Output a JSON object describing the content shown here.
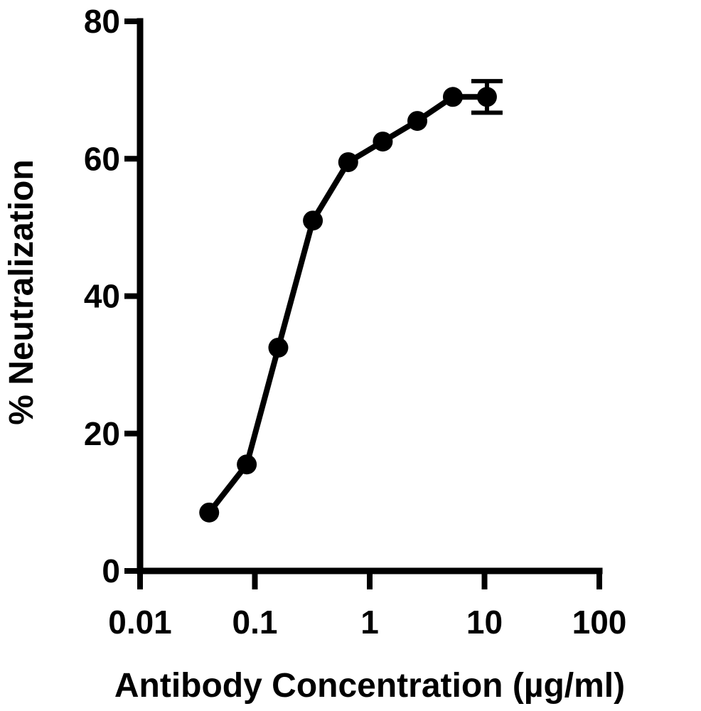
{
  "chart_data": {
    "type": "line",
    "xlabel": "Antibody Concentration (µg/ml)",
    "ylabel": "% Neutralization",
    "x_scale": "log",
    "xlim": [
      0.01,
      100
    ],
    "ylim": [
      0,
      80
    ],
    "x_ticks": [
      {
        "value": 0.01,
        "label": "0.01"
      },
      {
        "value": 0.1,
        "label": "0.1"
      },
      {
        "value": 1,
        "label": "1"
      },
      {
        "value": 10,
        "label": "10"
      },
      {
        "value": 100,
        "label": "100"
      }
    ],
    "y_ticks": [
      {
        "value": 0,
        "label": "0"
      },
      {
        "value": 20,
        "label": "20"
      },
      {
        "value": 40,
        "label": "40"
      },
      {
        "value": 60,
        "label": "60"
      },
      {
        "value": 80,
        "label": "80"
      }
    ],
    "grid": false,
    "series": [
      {
        "color": "#000000",
        "x": [
          0.04,
          0.085,
          0.16,
          0.32,
          0.65,
          1.3,
          2.6,
          5.3,
          10.5
        ],
        "y": [
          8.5,
          15.5,
          32.5,
          51,
          59.5,
          62.5,
          65.5,
          69,
          69
        ],
        "error": [
          0,
          0,
          0,
          0,
          0,
          0,
          0,
          0,
          2.3
        ]
      }
    ]
  }
}
